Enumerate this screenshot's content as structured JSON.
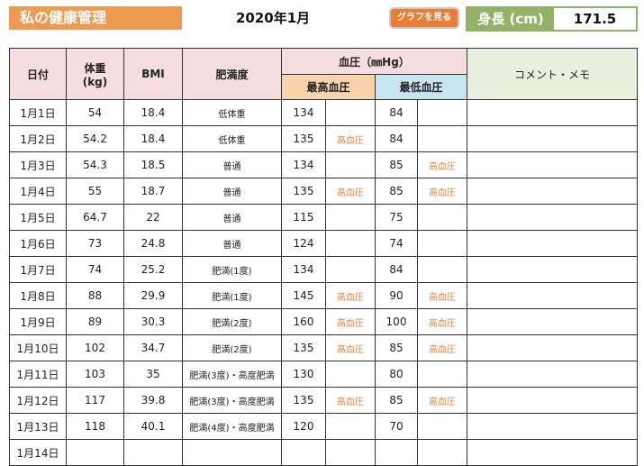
{
  "header": {
    "title": "私の健康管理",
    "month": "2020年1月",
    "graph_button": "グラフを見る",
    "height_label": "身長 (cm)",
    "height_value": "171.5"
  },
  "table": {
    "headers": {
      "date": "日付",
      "weight": "体重",
      "weight_unit": "(kg)",
      "bmi": "BMI",
      "obesity": "肥満度",
      "bp": "血圧（㎜Hg）",
      "bp_high": "最高血圧",
      "bp_low": "最低血圧",
      "memo": "コメント・メモ"
    },
    "rows": [
      {
        "date": "1月1日",
        "weight": "54",
        "bmi": "18.4",
        "obesity": "低体重",
        "high": "134",
        "high_flag": "",
        "low": "84",
        "low_flag": "",
        "memo": ""
      },
      {
        "date": "1月2日",
        "weight": "54.2",
        "bmi": "18.4",
        "obesity": "低体重",
        "high": "135",
        "high_flag": "高血圧",
        "low": "84",
        "low_flag": "",
        "memo": ""
      },
      {
        "date": "1月3日",
        "weight": "54.3",
        "bmi": "18.5",
        "obesity": "普通",
        "high": "134",
        "high_flag": "",
        "low": "85",
        "low_flag": "高血圧",
        "memo": ""
      },
      {
        "date": "1月4日",
        "weight": "55",
        "bmi": "18.7",
        "obesity": "普通",
        "high": "135",
        "high_flag": "高血圧",
        "low": "85",
        "low_flag": "高血圧",
        "memo": ""
      },
      {
        "date": "1月5日",
        "weight": "64.7",
        "bmi": "22",
        "obesity": "普通",
        "high": "115",
        "high_flag": "",
        "low": "75",
        "low_flag": "",
        "memo": ""
      },
      {
        "date": "1月6日",
        "weight": "73",
        "bmi": "24.8",
        "obesity": "普通",
        "high": "124",
        "high_flag": "",
        "low": "74",
        "low_flag": "",
        "memo": ""
      },
      {
        "date": "1月7日",
        "weight": "74",
        "bmi": "25.2",
        "obesity": "肥満(1度)",
        "high": "134",
        "high_flag": "",
        "low": "84",
        "low_flag": "",
        "memo": ""
      },
      {
        "date": "1月8日",
        "weight": "88",
        "bmi": "29.9",
        "obesity": "肥満(1度)",
        "high": "145",
        "high_flag": "高血圧",
        "low": "90",
        "low_flag": "高血圧",
        "memo": ""
      },
      {
        "date": "1月9日",
        "weight": "89",
        "bmi": "30.3",
        "obesity": "肥満(2度)",
        "high": "160",
        "high_flag": "高血圧",
        "low": "100",
        "low_flag": "高血圧",
        "memo": ""
      },
      {
        "date": "1月10日",
        "weight": "102",
        "bmi": "34.7",
        "obesity": "肥満(2度)",
        "high": "135",
        "high_flag": "高血圧",
        "low": "85",
        "low_flag": "高血圧",
        "memo": ""
      },
      {
        "date": "1月11日",
        "weight": "103",
        "bmi": "35",
        "obesity": "肥満(3度)・高度肥満",
        "high": "130",
        "high_flag": "",
        "low": "80",
        "low_flag": "",
        "memo": ""
      },
      {
        "date": "1月12日",
        "weight": "117",
        "bmi": "39.8",
        "obesity": "肥満(3度)・高度肥満",
        "high": "135",
        "high_flag": "高血圧",
        "low": "85",
        "low_flag": "高血圧",
        "memo": ""
      },
      {
        "date": "1月13日",
        "weight": "118",
        "bmi": "40.1",
        "obesity": "肥満(4度)・高度肥満",
        "high": "120",
        "high_flag": "",
        "low": "70",
        "low_flag": "",
        "memo": ""
      },
      {
        "date": "1月14日",
        "weight": "",
        "bmi": "",
        "obesity": "",
        "high": "",
        "high_flag": "",
        "low": "",
        "low_flag": "",
        "memo": ""
      }
    ]
  }
}
